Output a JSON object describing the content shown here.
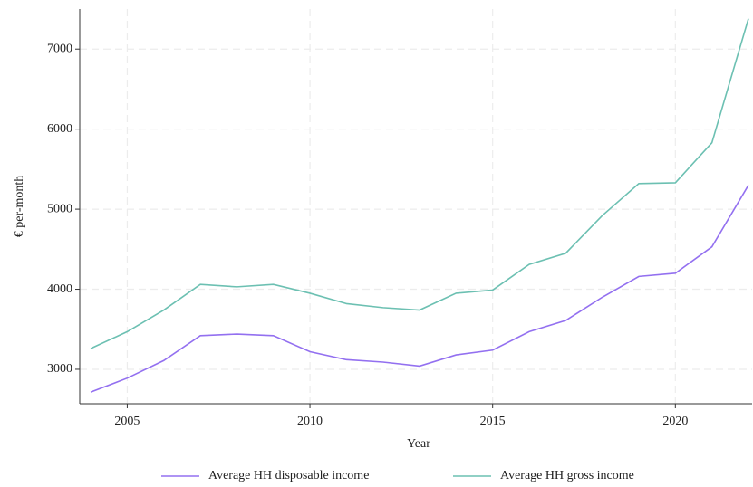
{
  "chart_data": {
    "type": "line",
    "x_label": "Year",
    "y_label": "€ per-month",
    "x": [
      2004,
      2005,
      2006,
      2007,
      2008,
      2009,
      2010,
      2011,
      2012,
      2013,
      2014,
      2015,
      2016,
      2017,
      2018,
      2019,
      2020,
      2021,
      2022
    ],
    "series": [
      {
        "name": "Average HH disposable income",
        "color": "#9370f0",
        "values": [
          2715,
          2890,
          3110,
          3420,
          3440,
          3420,
          3220,
          3120,
          3090,
          3040,
          3180,
          3240,
          3470,
          3610,
          3900,
          4160,
          4200,
          4530,
          5300
        ]
      },
      {
        "name": "Average HH gross income",
        "color": "#6cc0b2",
        "values": [
          3260,
          3470,
          3740,
          4060,
          4030,
          4060,
          3950,
          3820,
          3770,
          3740,
          3950,
          3990,
          4310,
          4450,
          4920,
          5320,
          5330,
          5830,
          7380
        ]
      }
    ],
    "xlim": [
      2003.7,
      2022.1
    ],
    "xticks": [
      2005,
      2010,
      2015,
      2020
    ],
    "ylim": [
      2570,
      7500
    ],
    "yticks": [
      3000,
      4000,
      5000,
      6000,
      7000
    ],
    "grid": true,
    "legend": "bottom"
  }
}
